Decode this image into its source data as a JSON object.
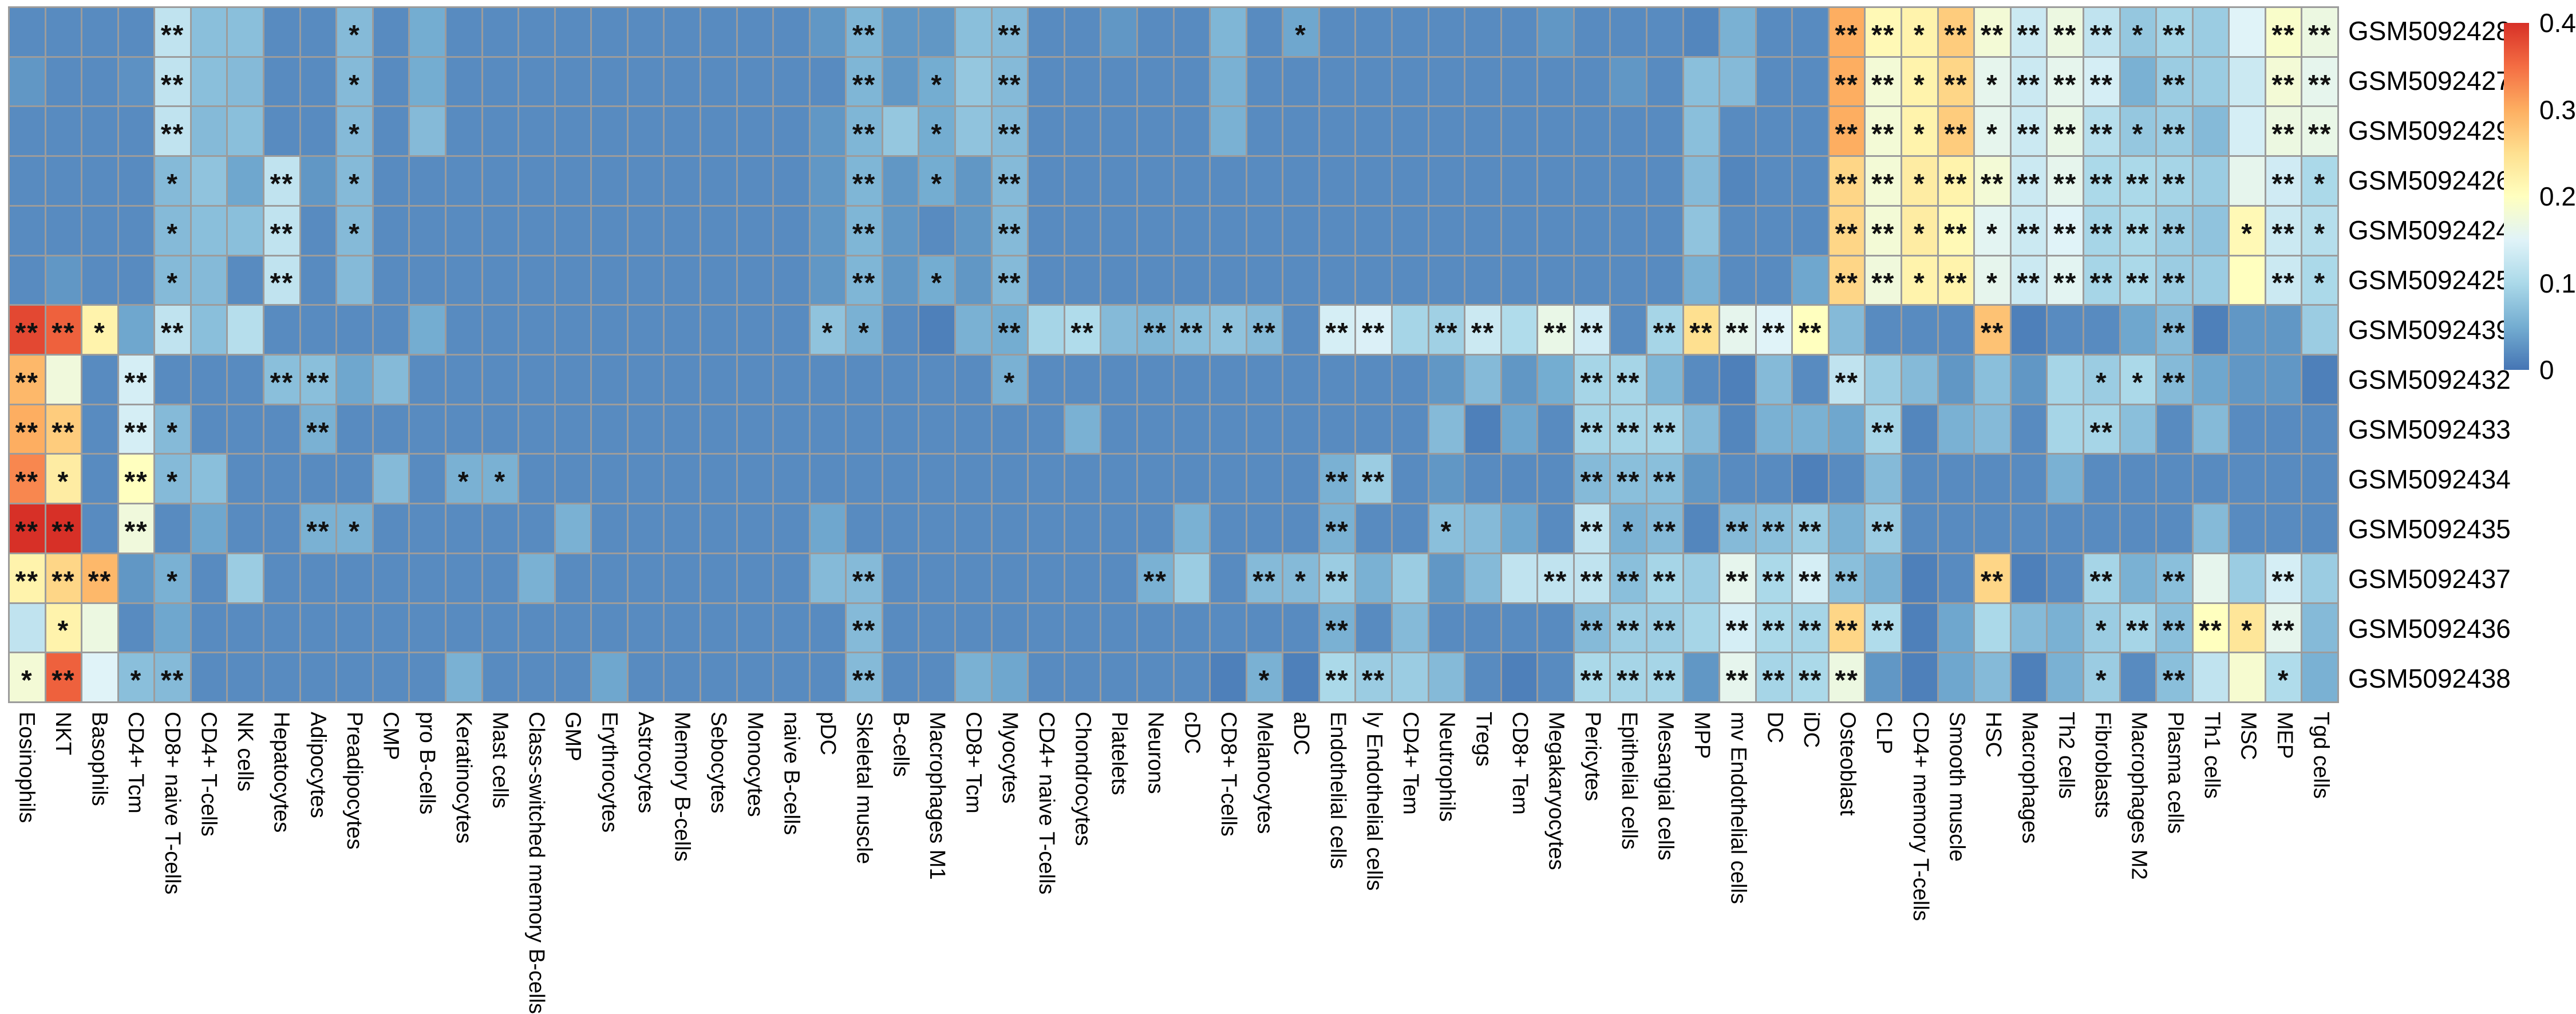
{
  "figure_name": "cell-type-enrichment-heatmap",
  "chart_data": {
    "type": "heatmap",
    "rows": [
      "GSM5092428",
      "GSM5092427",
      "GSM5092429",
      "GSM5092426",
      "GSM5092424",
      "GSM5092425",
      "GSM5092439",
      "GSM5092432",
      "GSM5092433",
      "GSM5092434",
      "GSM5092435",
      "GSM5092437",
      "GSM5092436",
      "GSM5092438"
    ],
    "columns": [
      "Eosinophils",
      "NKT",
      "Basophils",
      "CD4+ Tcm",
      "CD8+ naive T-cells",
      "CD4+ T-cells",
      "NK cells",
      "Hepatocytes",
      "Adipocytes",
      "Preadipocytes",
      "CMP",
      "pro B-cells",
      "Keratinocytes",
      "Mast cells",
      "Class-switched memory B-cells",
      "GMP",
      "Erythrocytes",
      "Astrocytes",
      "Memory B-cells",
      "Sebocytes",
      "Monocytes",
      "naive B-cells",
      "pDC",
      "Skeletal muscle",
      "B-cells",
      "Macrophages M1",
      "CD8+ Tcm",
      "Myocytes",
      "CD4+ naive T-cells",
      "Chondrocytes",
      "Platelets",
      "Neurons",
      "cDC",
      "CD8+ T-cells",
      "Melanocytes",
      "aDC",
      "Endothelial cells",
      "ly Endothelial cells",
      "CD4+ Tem",
      "Neutrophils",
      "Tregs",
      "CD8+ Tem",
      "Megakaryocytes",
      "Pericytes",
      "Epithelial cells",
      "Mesangial cells",
      "MPP",
      "mv Endothelial cells",
      "DC",
      "iDC",
      "Osteoblast",
      "CLP",
      "CD4+ memory T-cells",
      "Smooth muscle",
      "HSC",
      "Macrophages",
      "Th2 cells",
      "Fibroblasts",
      "Macrophages M2",
      "Plasma cells",
      "Th1 cells",
      "MSC",
      "MEP",
      "Tgd cells"
    ],
    "values": [
      [
        0.02,
        0.02,
        0.02,
        0.02,
        0.12,
        0.07,
        0.07,
        0.02,
        0.02,
        0.065,
        0.02,
        0.05,
        0.02,
        0.02,
        0.02,
        0.02,
        0.02,
        0.02,
        0.02,
        0.02,
        0.02,
        0.02,
        0.03,
        0.06,
        0.03,
        0.03,
        0.07,
        0.065,
        0.02,
        0.02,
        0.03,
        0.02,
        0.02,
        0.06,
        0.02,
        0.045,
        0.02,
        0.02,
        0.02,
        0.02,
        0.02,
        0.02,
        0.03,
        0.02,
        0.02,
        0.02,
        0.015,
        0.055,
        0.02,
        0.02,
        0.3,
        0.21,
        0.22,
        0.27,
        0.18,
        0.13,
        0.17,
        0.12,
        0.08,
        0.095,
        0.085,
        0.15,
        0.19,
        0.17
      ],
      [
        0.03,
        0.02,
        0.02,
        0.025,
        0.12,
        0.07,
        0.065,
        0.02,
        0.02,
        0.065,
        0.02,
        0.05,
        0.02,
        0.02,
        0.02,
        0.02,
        0.02,
        0.02,
        0.02,
        0.02,
        0.02,
        0.02,
        0.02,
        0.06,
        0.03,
        0.05,
        0.08,
        0.065,
        0.02,
        0.02,
        0.02,
        0.02,
        0.02,
        0.055,
        0.02,
        0.02,
        0.02,
        0.02,
        0.02,
        0.02,
        0.02,
        0.02,
        0.02,
        0.02,
        0.03,
        0.02,
        0.07,
        0.065,
        0.02,
        0.02,
        0.3,
        0.18,
        0.22,
        0.26,
        0.16,
        0.13,
        0.16,
        0.14,
        0.055,
        0.085,
        0.085,
        0.13,
        0.18,
        0.16
      ],
      [
        0.02,
        0.02,
        0.02,
        0.02,
        0.12,
        0.065,
        0.07,
        0.02,
        0.02,
        0.065,
        0.02,
        0.065,
        0.02,
        0.02,
        0.02,
        0.02,
        0.02,
        0.02,
        0.02,
        0.02,
        0.02,
        0.02,
        0.03,
        0.06,
        0.08,
        0.05,
        0.075,
        0.065,
        0.02,
        0.02,
        0.02,
        0.02,
        0.02,
        0.055,
        0.02,
        0.02,
        0.02,
        0.02,
        0.02,
        0.02,
        0.02,
        0.02,
        0.02,
        0.02,
        0.02,
        0.02,
        0.07,
        0.02,
        0.02,
        0.02,
        0.3,
        0.18,
        0.22,
        0.27,
        0.16,
        0.13,
        0.165,
        0.11,
        0.08,
        0.085,
        0.065,
        0.14,
        0.17,
        0.165
      ],
      [
        0.02,
        0.02,
        0.02,
        0.02,
        0.065,
        0.075,
        0.045,
        0.12,
        0.03,
        0.065,
        0.02,
        0.02,
        0.02,
        0.02,
        0.02,
        0.02,
        0.02,
        0.02,
        0.02,
        0.02,
        0.02,
        0.02,
        0.03,
        0.06,
        0.03,
        0.05,
        0.03,
        0.065,
        0.02,
        0.02,
        0.02,
        0.02,
        0.02,
        0.02,
        0.02,
        0.02,
        0.02,
        0.02,
        0.02,
        0.02,
        0.02,
        0.02,
        0.02,
        0.02,
        0.02,
        0.02,
        0.065,
        0.015,
        0.02,
        0.02,
        0.26,
        0.18,
        0.23,
        0.22,
        0.18,
        0.13,
        0.16,
        0.1,
        0.1,
        0.095,
        0.085,
        0.16,
        0.135,
        0.1
      ],
      [
        0.02,
        0.02,
        0.02,
        0.02,
        0.065,
        0.07,
        0.07,
        0.12,
        0.02,
        0.065,
        0.02,
        0.02,
        0.02,
        0.02,
        0.02,
        0.02,
        0.02,
        0.02,
        0.02,
        0.02,
        0.02,
        0.02,
        0.03,
        0.06,
        0.03,
        0.02,
        0.03,
        0.065,
        0.02,
        0.02,
        0.02,
        0.02,
        0.02,
        0.02,
        0.02,
        0.02,
        0.02,
        0.02,
        0.02,
        0.02,
        0.02,
        0.02,
        0.02,
        0.02,
        0.02,
        0.02,
        0.075,
        0.02,
        0.02,
        0.02,
        0.26,
        0.18,
        0.23,
        0.21,
        0.155,
        0.13,
        0.15,
        0.095,
        0.1,
        0.085,
        0.075,
        0.21,
        0.13,
        0.11
      ],
      [
        0.02,
        0.03,
        0.02,
        0.02,
        0.065,
        0.065,
        0.02,
        0.12,
        0.02,
        0.065,
        0.02,
        0.02,
        0.02,
        0.02,
        0.02,
        0.02,
        0.02,
        0.02,
        0.02,
        0.02,
        0.02,
        0.02,
        0.03,
        0.06,
        0.03,
        0.05,
        0.03,
        0.065,
        0.02,
        0.02,
        0.02,
        0.02,
        0.02,
        0.02,
        0.02,
        0.02,
        0.02,
        0.02,
        0.02,
        0.02,
        0.02,
        0.02,
        0.02,
        0.02,
        0.02,
        0.02,
        0.055,
        0.02,
        0.02,
        0.045,
        0.26,
        0.175,
        0.22,
        0.22,
        0.16,
        0.13,
        0.155,
        0.095,
        0.1,
        0.085,
        0.085,
        0.2,
        0.13,
        0.1
      ],
      [
        0.38,
        0.36,
        0.22,
        0.045,
        0.12,
        0.07,
        0.11,
        0.02,
        0.02,
        0.02,
        0.02,
        0.05,
        0.02,
        0.02,
        0.02,
        0.02,
        0.02,
        0.02,
        0.02,
        0.02,
        0.02,
        0.02,
        0.075,
        0.055,
        0.02,
        0.01,
        0.055,
        0.05,
        0.095,
        0.105,
        0.065,
        0.06,
        0.07,
        0.075,
        0.065,
        0.02,
        0.14,
        0.145,
        0.095,
        0.09,
        0.13,
        0.105,
        0.165,
        0.135,
        0.02,
        0.095,
        0.25,
        0.16,
        0.15,
        0.2,
        0.065,
        0.02,
        0.02,
        0.02,
        0.28,
        0.01,
        0.02,
        0.02,
        0.045,
        0.065,
        0.01,
        0.03,
        0.03,
        0.085
      ],
      [
        0.29,
        0.175,
        0.02,
        0.14,
        0.02,
        0.02,
        0.02,
        0.07,
        0.07,
        0.045,
        0.065,
        0.02,
        0.02,
        0.02,
        0.02,
        0.02,
        0.02,
        0.02,
        0.02,
        0.02,
        0.02,
        0.02,
        0.02,
        0.02,
        0.02,
        0.02,
        0.02,
        0.055,
        0.02,
        0.02,
        0.02,
        0.02,
        0.02,
        0.02,
        0.02,
        0.02,
        0.02,
        0.02,
        0.02,
        0.03,
        0.065,
        0.03,
        0.05,
        0.095,
        0.095,
        0.06,
        0.02,
        0.01,
        0.065,
        0.02,
        0.12,
        0.085,
        0.065,
        0.03,
        0.07,
        0.03,
        0.095,
        0.085,
        0.1,
        0.065,
        0.045,
        0.03,
        0.03,
        0.01
      ],
      [
        0.3,
        0.27,
        0.02,
        0.14,
        0.065,
        0.02,
        0.02,
        0.02,
        0.055,
        0.02,
        0.02,
        0.02,
        0.02,
        0.02,
        0.02,
        0.02,
        0.02,
        0.02,
        0.02,
        0.02,
        0.02,
        0.02,
        0.02,
        0.02,
        0.02,
        0.02,
        0.02,
        0.02,
        0.02,
        0.055,
        0.02,
        0.02,
        0.02,
        0.02,
        0.02,
        0.02,
        0.02,
        0.02,
        0.02,
        0.065,
        0.01,
        0.045,
        0.02,
        0.095,
        0.095,
        0.095,
        0.065,
        0.015,
        0.055,
        0.055,
        0.045,
        0.095,
        0.015,
        0.055,
        0.065,
        0.02,
        0.095,
        0.095,
        0.07,
        0.02,
        0.065,
        0.02,
        0.02,
        0.02
      ],
      [
        0.33,
        0.23,
        0.02,
        0.2,
        0.065,
        0.07,
        0.02,
        0.02,
        0.02,
        0.02,
        0.065,
        0.02,
        0.055,
        0.055,
        0.02,
        0.02,
        0.02,
        0.02,
        0.02,
        0.02,
        0.02,
        0.02,
        0.02,
        0.02,
        0.02,
        0.02,
        0.02,
        0.02,
        0.02,
        0.02,
        0.02,
        0.02,
        0.02,
        0.02,
        0.02,
        0.02,
        0.055,
        0.085,
        0.02,
        0.03,
        0.02,
        0.02,
        0.02,
        0.065,
        0.07,
        0.07,
        0.03,
        0.02,
        0.02,
        0.01,
        0.02,
        0.065,
        0.02,
        0.02,
        0.02,
        0.02,
        0.055,
        0.02,
        0.02,
        0.02,
        0.02,
        0.02,
        0.02,
        0.02
      ],
      [
        0.4,
        0.4,
        0.02,
        0.175,
        0.02,
        0.045,
        0.02,
        0.02,
        0.055,
        0.055,
        0.02,
        0.02,
        0.02,
        0.02,
        0.02,
        0.055,
        0.02,
        0.02,
        0.02,
        0.02,
        0.02,
        0.02,
        0.045,
        0.02,
        0.02,
        0.02,
        0.02,
        0.02,
        0.02,
        0.02,
        0.02,
        0.02,
        0.055,
        0.02,
        0.02,
        0.02,
        0.055,
        0.02,
        0.02,
        0.07,
        0.065,
        0.045,
        0.02,
        0.12,
        0.055,
        0.065,
        0.015,
        0.065,
        0.07,
        0.085,
        0.055,
        0.085,
        0.02,
        0.02,
        0.02,
        0.02,
        0.02,
        0.02,
        0.02,
        0.02,
        0.065,
        0.02,
        0.02,
        0.02
      ],
      [
        0.22,
        0.26,
        0.29,
        0.03,
        0.055,
        0.02,
        0.085,
        0.02,
        0.02,
        0.02,
        0.02,
        0.02,
        0.02,
        0.02,
        0.055,
        0.02,
        0.02,
        0.02,
        0.02,
        0.02,
        0.02,
        0.02,
        0.065,
        0.065,
        0.02,
        0.02,
        0.02,
        0.02,
        0.02,
        0.02,
        0.02,
        0.055,
        0.085,
        0.02,
        0.065,
        0.065,
        0.085,
        0.055,
        0.085,
        0.03,
        0.065,
        0.12,
        0.12,
        0.12,
        0.07,
        0.095,
        0.085,
        0.16,
        0.1,
        0.14,
        0.07,
        0.055,
        0.01,
        0.02,
        0.26,
        0.01,
        0.02,
        0.095,
        0.055,
        0.07,
        0.16,
        0.085,
        0.14,
        0.085
      ],
      [
        0.12,
        0.22,
        0.17,
        0.02,
        0.045,
        0.02,
        0.02,
        0.02,
        0.02,
        0.02,
        0.02,
        0.02,
        0.02,
        0.02,
        0.02,
        0.02,
        0.02,
        0.02,
        0.02,
        0.02,
        0.02,
        0.02,
        0.02,
        0.065,
        0.02,
        0.02,
        0.02,
        0.02,
        0.02,
        0.02,
        0.02,
        0.02,
        0.02,
        0.02,
        0.02,
        0.02,
        0.055,
        0.02,
        0.065,
        0.02,
        0.02,
        0.02,
        0.02,
        0.065,
        0.085,
        0.085,
        0.095,
        0.14,
        0.1,
        0.095,
        0.26,
        0.105,
        0.01,
        0.045,
        0.1,
        0.065,
        0.055,
        0.085,
        0.095,
        0.07,
        0.2,
        0.24,
        0.16,
        0.065
      ],
      [
        0.18,
        0.36,
        0.15,
        0.07,
        0.065,
        0.02,
        0.02,
        0.02,
        0.02,
        0.02,
        0.02,
        0.02,
        0.055,
        0.02,
        0.02,
        0.02,
        0.045,
        0.02,
        0.02,
        0.02,
        0.02,
        0.02,
        0.02,
        0.065,
        0.02,
        0.02,
        0.055,
        0.045,
        0.02,
        0.02,
        0.02,
        0.02,
        0.02,
        0.01,
        0.055,
        0.01,
        0.1,
        0.085,
        0.085,
        0.065,
        0.02,
        0.01,
        0.02,
        0.1,
        0.095,
        0.095,
        0.03,
        0.16,
        0.095,
        0.1,
        0.17,
        0.03,
        0.01,
        0.045,
        0.065,
        0.01,
        0.055,
        0.085,
        0.02,
        0.07,
        0.12,
        0.185,
        0.105,
        0.055
      ]
    ],
    "significance_codes": [
      "0000200001000000000000020002000000010000000000000022122222120022",
      "0000200001000000000000020102000000000000000000000022121222020022",
      "0000200001000000000000020102000000000000000000000022121222120022",
      "0000100201000000000000020102000000000000000000000022122222220021",
      "0000100201000000000000020002000000000000000000000022121222220121",
      "0000100200000000000000020102000000000000000000000022121222220021",
      "2210200000000000000000110002020221202202202202222200002000020000",
      "2002000220000000000000000001000000000000000220000020000001120000",
      "2202100020000000000000000000000000000000000222000002000002000000",
      "2102100000001100000000000000000000002200000222000000000000000000",
      "2202000021000000000000000000000000002001000212022202000000000000",
      "2220100000000000000000020000000200212000002222022220002002020020",
      "0100000000000000000000020000000000002000000222022222000001222120",
      "1201200000000000000000020000000000102200000222022220000001020010"
    ],
    "significance_legend": {
      "1": "*",
      "2": "**"
    },
    "colorbar": {
      "tick_labels": [
        "0.4",
        "0.3",
        "0.2",
        "0.1",
        "0"
      ],
      "tick_values": [
        0.4,
        0.3,
        0.2,
        0.1,
        0
      ],
      "vmin": 0,
      "vmax": 0.4,
      "colormap": "RdYlBu_r",
      "stops": [
        "#4575b4",
        "#74add1",
        "#abd9e9",
        "#e0f3f8",
        "#ffffbf",
        "#fee090",
        "#fdae61",
        "#f46d43",
        "#d73027"
      ],
      "position": "right"
    },
    "grid": {
      "line_color": "#9c9c9c",
      "on": true
    },
    "title": "",
    "xlabel": "",
    "ylabel": ""
  }
}
